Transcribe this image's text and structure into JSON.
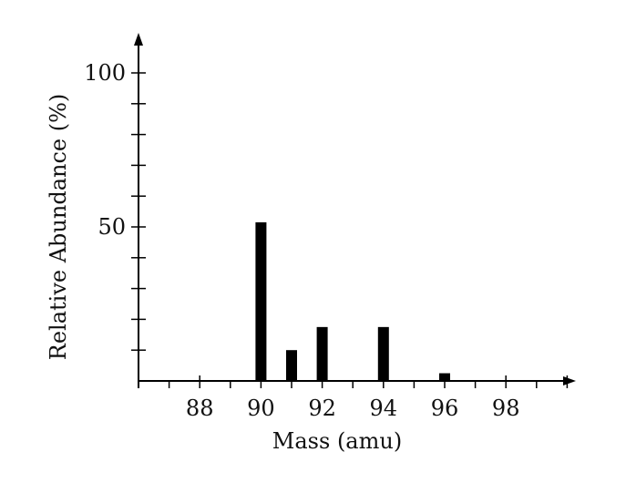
{
  "chart_data": {
    "type": "bar",
    "xlabel": "Mass (amu)",
    "ylabel": "Relative Abundance (%)",
    "x": [
      90,
      91,
      92,
      94,
      96
    ],
    "values": [
      51.5,
      10,
      17.5,
      17.5,
      2.5
    ],
    "xlim": [
      86,
      100
    ],
    "ylim": [
      0,
      100
    ],
    "x_tick_labels": [
      "88",
      "90",
      "92",
      "94",
      "96",
      "98"
    ],
    "y_tick_labels": [
      "50",
      "100"
    ],
    "grid": false,
    "bar_color": "#000000"
  }
}
